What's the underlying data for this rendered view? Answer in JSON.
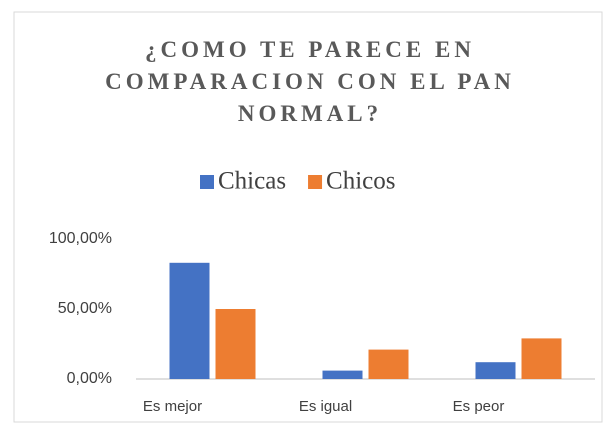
{
  "chart_data": {
    "type": "bar",
    "title": "¿COMO TE PARECE EN COMPARACION CON EL PAN NORMAL?",
    "categories": [
      "Es mejor",
      "Es igual",
      "Es peor"
    ],
    "series": [
      {
        "name": "Chicas",
        "color": "#4472c4",
        "values": [
          83,
          6,
          12
        ]
      },
      {
        "name": "Chicos",
        "color": "#ed7d31",
        "values": [
          50,
          21,
          29
        ]
      }
    ],
    "ylim": [
      0,
      100
    ],
    "yticks": [
      {
        "value": 0,
        "label": "0,00%"
      },
      {
        "value": 50,
        "label": "50,00%"
      },
      {
        "value": 100,
        "label": "100,00%"
      }
    ],
    "grid": false,
    "legend": "top"
  }
}
